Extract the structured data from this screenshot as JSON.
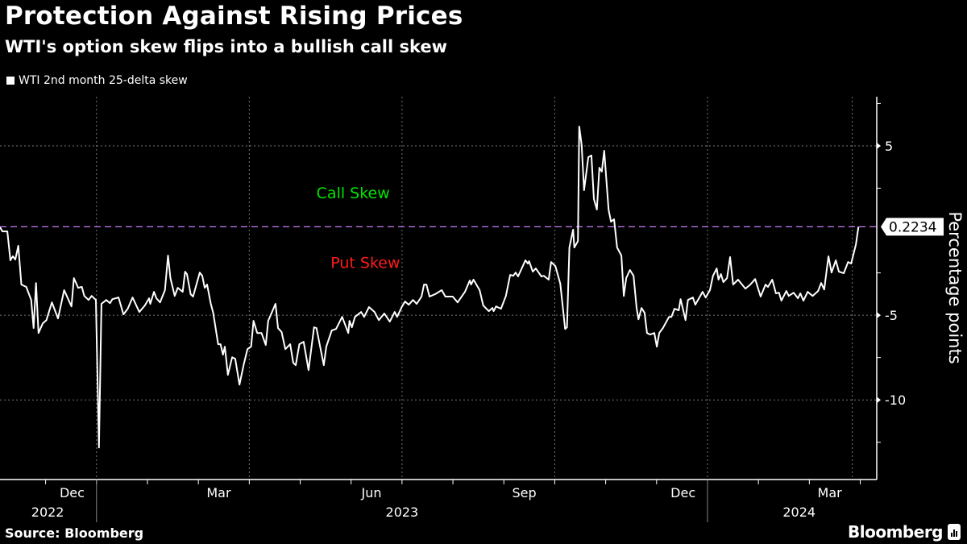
{
  "header": {
    "title": "Protection Against Rising Prices",
    "subtitle": "WTI's option skew flips into a bullish call skew"
  },
  "footer": {
    "source": "Source: Bloomberg",
    "brand": "Bloomberg"
  },
  "chart_data": {
    "type": "line",
    "title": "Protection Against Rising Prices",
    "subtitle": "WTI's option skew flips into a bullish call skew",
    "xlabel": "",
    "ylabel": "Percentage points",
    "x_units": "decimal year",
    "xlim": [
      2022.842,
      2024.277
    ],
    "ylim": [
      -14.7,
      7.9
    ],
    "y_ticks": [
      5,
      -5,
      -10
    ],
    "y_tick_labels": [
      "5",
      "-5",
      "-10"
    ],
    "y_minor_ticks": [
      7.5,
      2.5,
      -2.5,
      -7.5,
      -12.5
    ],
    "x_month_labels": [
      {
        "label": "Dec",
        "x": 2022.96
      },
      {
        "label": "Mar",
        "x": 2023.2
      },
      {
        "label": "Jun",
        "x": 2023.45
      },
      {
        "label": "Sep",
        "x": 2023.7
      },
      {
        "label": "Dec",
        "x": 2023.96
      },
      {
        "label": "Mar",
        "x": 2024.2
      }
    ],
    "x_year_labels": [
      {
        "label": "2022",
        "x": 2022.92
      },
      {
        "label": "2023",
        "x": 2023.5
      },
      {
        "label": "2024",
        "x": 2024.15
      }
    ],
    "year_dividers": [
      2023.0,
      2024.0
    ],
    "x_gridlines": [
      2023.0,
      2023.25,
      2023.5,
      2023.75,
      2024.0,
      2024.237
    ],
    "grid": true,
    "legend": {
      "position": "top-left",
      "entries": [
        "WTI 2nd month 25-delta skew"
      ]
    },
    "reference_line": {
      "value": 0.2234,
      "label": "0.2234",
      "color": "#c77dff"
    },
    "annotations": [
      {
        "text": "Call Skew",
        "color": "#00e600",
        "x": 2023.42,
        "y": 1.9
      },
      {
        "text": "Put Skew",
        "color": "#ff1a1a",
        "x": 2023.44,
        "y": -2.2
      }
    ],
    "series": [
      {
        "name": "WTI 2nd month 25-delta skew",
        "color": "#ffffff",
        "x": [
          2022.842,
          2022.846,
          2022.854,
          2022.859,
          2022.863,
          2022.867,
          2022.872,
          2022.877,
          2022.885,
          2022.893,
          2022.897,
          2022.901,
          2022.905,
          2022.912,
          2022.918,
          2022.927,
          2022.937,
          2022.947,
          2022.959,
          2022.963,
          2022.97,
          2022.976,
          2022.98,
          2022.987,
          2022.992,
          2022.999,
          2023.004,
          2023.008,
          2023.016,
          2023.022,
          2023.026,
          2023.036,
          2023.044,
          2023.051,
          2023.059,
          2023.07,
          2023.079,
          2023.086,
          2023.088,
          2023.094,
          2023.098,
          2023.104,
          2023.112,
          2023.117,
          2023.121,
          2023.128,
          2023.133,
          2023.141,
          2023.145,
          2023.148,
          2023.154,
          2023.158,
          2023.169,
          2023.173,
          2023.177,
          2023.181,
          2023.187,
          2023.191,
          2023.199,
          2023.203,
          2023.207,
          2023.21,
          2023.215,
          2023.222,
          2023.227,
          2023.234,
          2023.241,
          2023.247,
          2023.253,
          2023.257,
          2023.263,
          2023.27,
          2023.277,
          2023.281,
          2023.293,
          2023.297,
          2023.303,
          2023.309,
          2023.317,
          2023.322,
          2023.326,
          2023.332,
          2023.339,
          2023.347,
          2023.356,
          2023.36,
          2023.372,
          2023.376,
          2023.385,
          2023.392,
          2023.402,
          2023.412,
          2023.414,
          2023.418,
          2023.423,
          2023.433,
          2023.438,
          2023.446,
          2023.455,
          2023.462,
          2023.471,
          2023.48,
          2023.488,
          2023.492,
          2023.5,
          2023.505,
          2023.511,
          2023.518,
          2023.524,
          2023.532,
          2023.536,
          2023.54,
          2023.545,
          2023.554,
          2023.565,
          2023.571,
          2023.583,
          2023.591,
          2023.603,
          2023.611,
          2023.613,
          2023.617,
          2023.627,
          2023.633,
          2023.642,
          2023.648,
          2023.65,
          2023.654,
          2023.662,
          2023.67,
          2023.677,
          2023.682,
          2023.686,
          2023.69,
          2023.702,
          2023.706,
          2023.708,
          2023.714,
          2023.719,
          2023.728,
          2023.732,
          2023.74,
          2023.744,
          2023.751,
          2023.759,
          2023.767,
          2023.77,
          2023.774,
          2023.78,
          2023.782,
          2023.788,
          2023.79,
          2023.794,
          2023.798,
          2023.805,
          2023.81,
          2023.814,
          2023.819,
          2023.823,
          2023.827,
          2023.831,
          2023.838,
          2023.842,
          2023.847,
          2023.852,
          2023.859,
          2023.863,
          2023.867,
          2023.873,
          2023.879,
          2023.884,
          2023.887,
          2023.892,
          2023.897,
          2023.901,
          2023.906,
          2023.913,
          2023.917,
          2023.921,
          2023.927,
          2023.937,
          2023.941,
          2023.946,
          2023.953,
          2023.956,
          2023.964,
          2023.968,
          2023.976,
          2023.98,
          2023.992,
          2023.997,
          2024.004,
          2024.009,
          2024.015,
          2024.018,
          2024.022,
          2024.026,
          2024.032,
          2024.037,
          2024.042,
          2024.05,
          2024.062,
          2024.07,
          2024.078,
          2024.087,
          2024.095,
          2024.099,
          2024.106,
          2024.112,
          2024.117,
          2024.121,
          2024.129,
          2024.133,
          2024.141,
          2024.148,
          2024.152,
          2024.157,
          2024.164,
          2024.172,
          2024.181,
          2024.186,
          2024.191,
          2024.198,
          2024.203,
          2024.21,
          2024.215,
          2024.223,
          2024.23,
          2024.235,
          2024.243,
          2024.247
        ],
        "values": [
          0.19,
          -0.05,
          -0.05,
          -1.76,
          -1.52,
          -1.71,
          -0.9,
          -3.19,
          -3.33,
          -4.1,
          -5.76,
          -3.1,
          -6.05,
          -5.48,
          -5.29,
          -4.24,
          -5.19,
          -3.52,
          -4.48,
          -2.81,
          -3.38,
          -3.33,
          -3.86,
          -4.1,
          -3.86,
          -4.1,
          -12.81,
          -4.33,
          -4.1,
          -4.29,
          -4.05,
          -3.95,
          -4.95,
          -4.62,
          -3.95,
          -4.81,
          -4.43,
          -4.0,
          -4.33,
          -3.62,
          -4.0,
          -4.24,
          -3.52,
          -1.48,
          -2.81,
          -3.86,
          -3.38,
          -3.62,
          -2.43,
          -2.57,
          -3.76,
          -3.9,
          -2.48,
          -2.67,
          -3.38,
          -3.19,
          -4.33,
          -4.86,
          -6.71,
          -6.71,
          -7.33,
          -6.86,
          -8.52,
          -7.48,
          -7.57,
          -9.1,
          -7.9,
          -7.0,
          -6.86,
          -5.33,
          -6.05,
          -6.05,
          -6.76,
          -5.33,
          -4.33,
          -5.76,
          -6.0,
          -7.0,
          -6.71,
          -7.81,
          -7.95,
          -6.71,
          -6.57,
          -8.24,
          -5.71,
          -5.76,
          -7.95,
          -6.86,
          -5.9,
          -5.81,
          -5.1,
          -6.05,
          -5.33,
          -5.71,
          -5.1,
          -4.81,
          -5.1,
          -4.52,
          -4.81,
          -5.29,
          -4.9,
          -5.38,
          -4.81,
          -5.1,
          -4.48,
          -4.19,
          -4.38,
          -4.1,
          -4.33,
          -3.9,
          -3.19,
          -3.19,
          -3.9,
          -3.76,
          -3.52,
          -3.9,
          -3.9,
          -4.24,
          -3.62,
          -2.95,
          -3.19,
          -2.9,
          -3.52,
          -4.43,
          -4.76,
          -4.57,
          -4.76,
          -4.48,
          -4.62,
          -3.86,
          -2.62,
          -2.67,
          -2.48,
          -2.71,
          -1.76,
          -1.95,
          -1.81,
          -2.43,
          -2.24,
          -2.71,
          -2.67,
          -2.9,
          -1.86,
          -2.1,
          -3.14,
          -5.81,
          -5.71,
          -1.0,
          0.05,
          -1.0,
          -0.62,
          6.14,
          5.05,
          2.38,
          4.33,
          4.43,
          1.86,
          1.24,
          3.71,
          3.48,
          4.71,
          1.24,
          0.52,
          0.67,
          -1.0,
          -1.48,
          -3.86,
          -2.81,
          -2.33,
          -2.67,
          -4.57,
          -5.24,
          -4.57,
          -4.86,
          -6.05,
          -6.14,
          -6.05,
          -6.86,
          -6.05,
          -5.76,
          -5.1,
          -5.1,
          -4.62,
          -4.71,
          -4.05,
          -5.29,
          -4.1,
          -3.95,
          -4.38,
          -3.62,
          -3.95,
          -3.52,
          -2.67,
          -2.24,
          -2.9,
          -2.57,
          -3.05,
          -2.81,
          -1.57,
          -3.19,
          -2.9,
          -3.43,
          -3.19,
          -2.86,
          -3.9,
          -3.19,
          -3.33,
          -2.9,
          -3.71,
          -3.67,
          -4.14,
          -3.57,
          -3.86,
          -3.67,
          -4.0,
          -3.71,
          -4.14,
          -3.62,
          -3.86,
          -3.57,
          -3.1,
          -3.48,
          -1.52,
          -2.48,
          -1.76,
          -2.43,
          -2.52,
          -1.86,
          -1.95,
          -0.81,
          0.2234
        ]
      }
    ]
  }
}
